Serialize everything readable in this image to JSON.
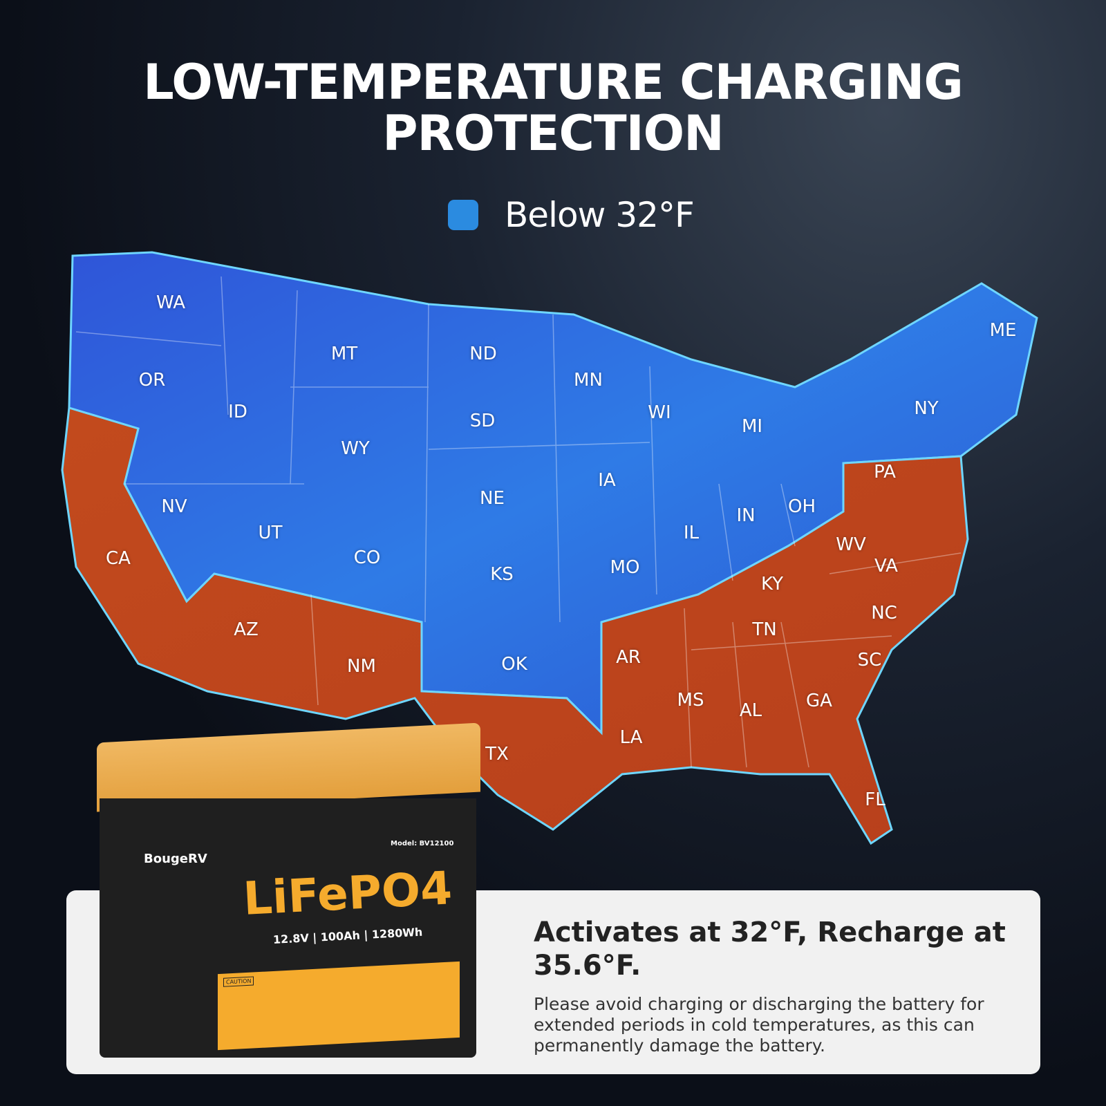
{
  "title": {
    "line1": "LOW-TEMPERATURE CHARGING",
    "line2": "PROTECTION"
  },
  "legend": {
    "label": "Below 32°F",
    "color": "#2b8be0",
    "icon": "rounded-square"
  },
  "colors": {
    "cold": "#2f63d8",
    "warm": "#c9481e"
  },
  "states_cold": [
    "WA",
    "OR",
    "ID",
    "MT",
    "ND",
    "MN",
    "WI",
    "MI",
    "NY",
    "ME",
    "SD",
    "WY",
    "NV",
    "UT",
    "CO",
    "NE",
    "IA",
    "IL",
    "IN",
    "OH",
    "KS",
    "MO",
    "OK"
  ],
  "states_warm": [
    "CA",
    "AZ",
    "NM",
    "TX",
    "AR",
    "LA",
    "MS",
    "AL",
    "GA",
    "FL",
    "SC",
    "NC",
    "TN",
    "KY",
    "VA",
    "WV",
    "PA"
  ],
  "battery": {
    "brand": "BougeRV",
    "model": "Model: BV12100",
    "chemistry": "LiFePO4",
    "specs": "12.8V | 100Ah | 1280Wh",
    "caution": "CAUTION"
  },
  "card": {
    "title": "Activates at 32°F, Recharge at 35.6°F.",
    "body": "Please avoid charging or discharging the battery for extended periods in cold temperatures, as this can permanently damage the battery."
  }
}
